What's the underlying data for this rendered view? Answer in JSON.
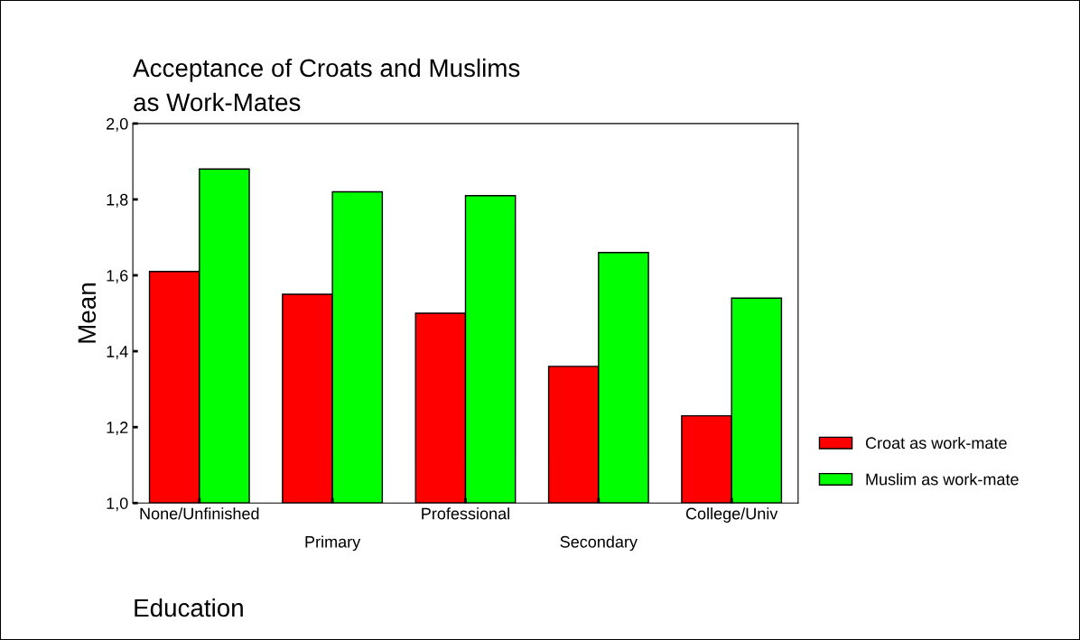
{
  "chart_data": {
    "type": "bar",
    "title": "Acceptance of Croats and Muslims\nas Work-Mates",
    "xlabel": "Education",
    "ylabel": "Mean",
    "categories": [
      "None/Unfinished",
      "Primary",
      "Professional",
      "Secondary",
      "College/Univ"
    ],
    "series": [
      {
        "name": "Croat as work-mate",
        "color": "#ff0000",
        "values": [
          1.61,
          1.55,
          1.5,
          1.36,
          1.23
        ]
      },
      {
        "name": "Muslim as work-mate",
        "color": "#00ff00",
        "values": [
          1.88,
          1.82,
          1.81,
          1.66,
          1.54
        ]
      }
    ],
    "ylim": [
      1.0,
      2.0
    ],
    "yticks": [
      {
        "value": 1.0,
        "label": "1,0"
      },
      {
        "value": 1.2,
        "label": "1,2"
      },
      {
        "value": 1.4,
        "label": "1,4"
      },
      {
        "value": 1.6,
        "label": "1,6"
      },
      {
        "value": 1.8,
        "label": "1,8"
      },
      {
        "value": 2.0,
        "label": "2,0"
      }
    ],
    "grid": false,
    "legend": "right"
  }
}
